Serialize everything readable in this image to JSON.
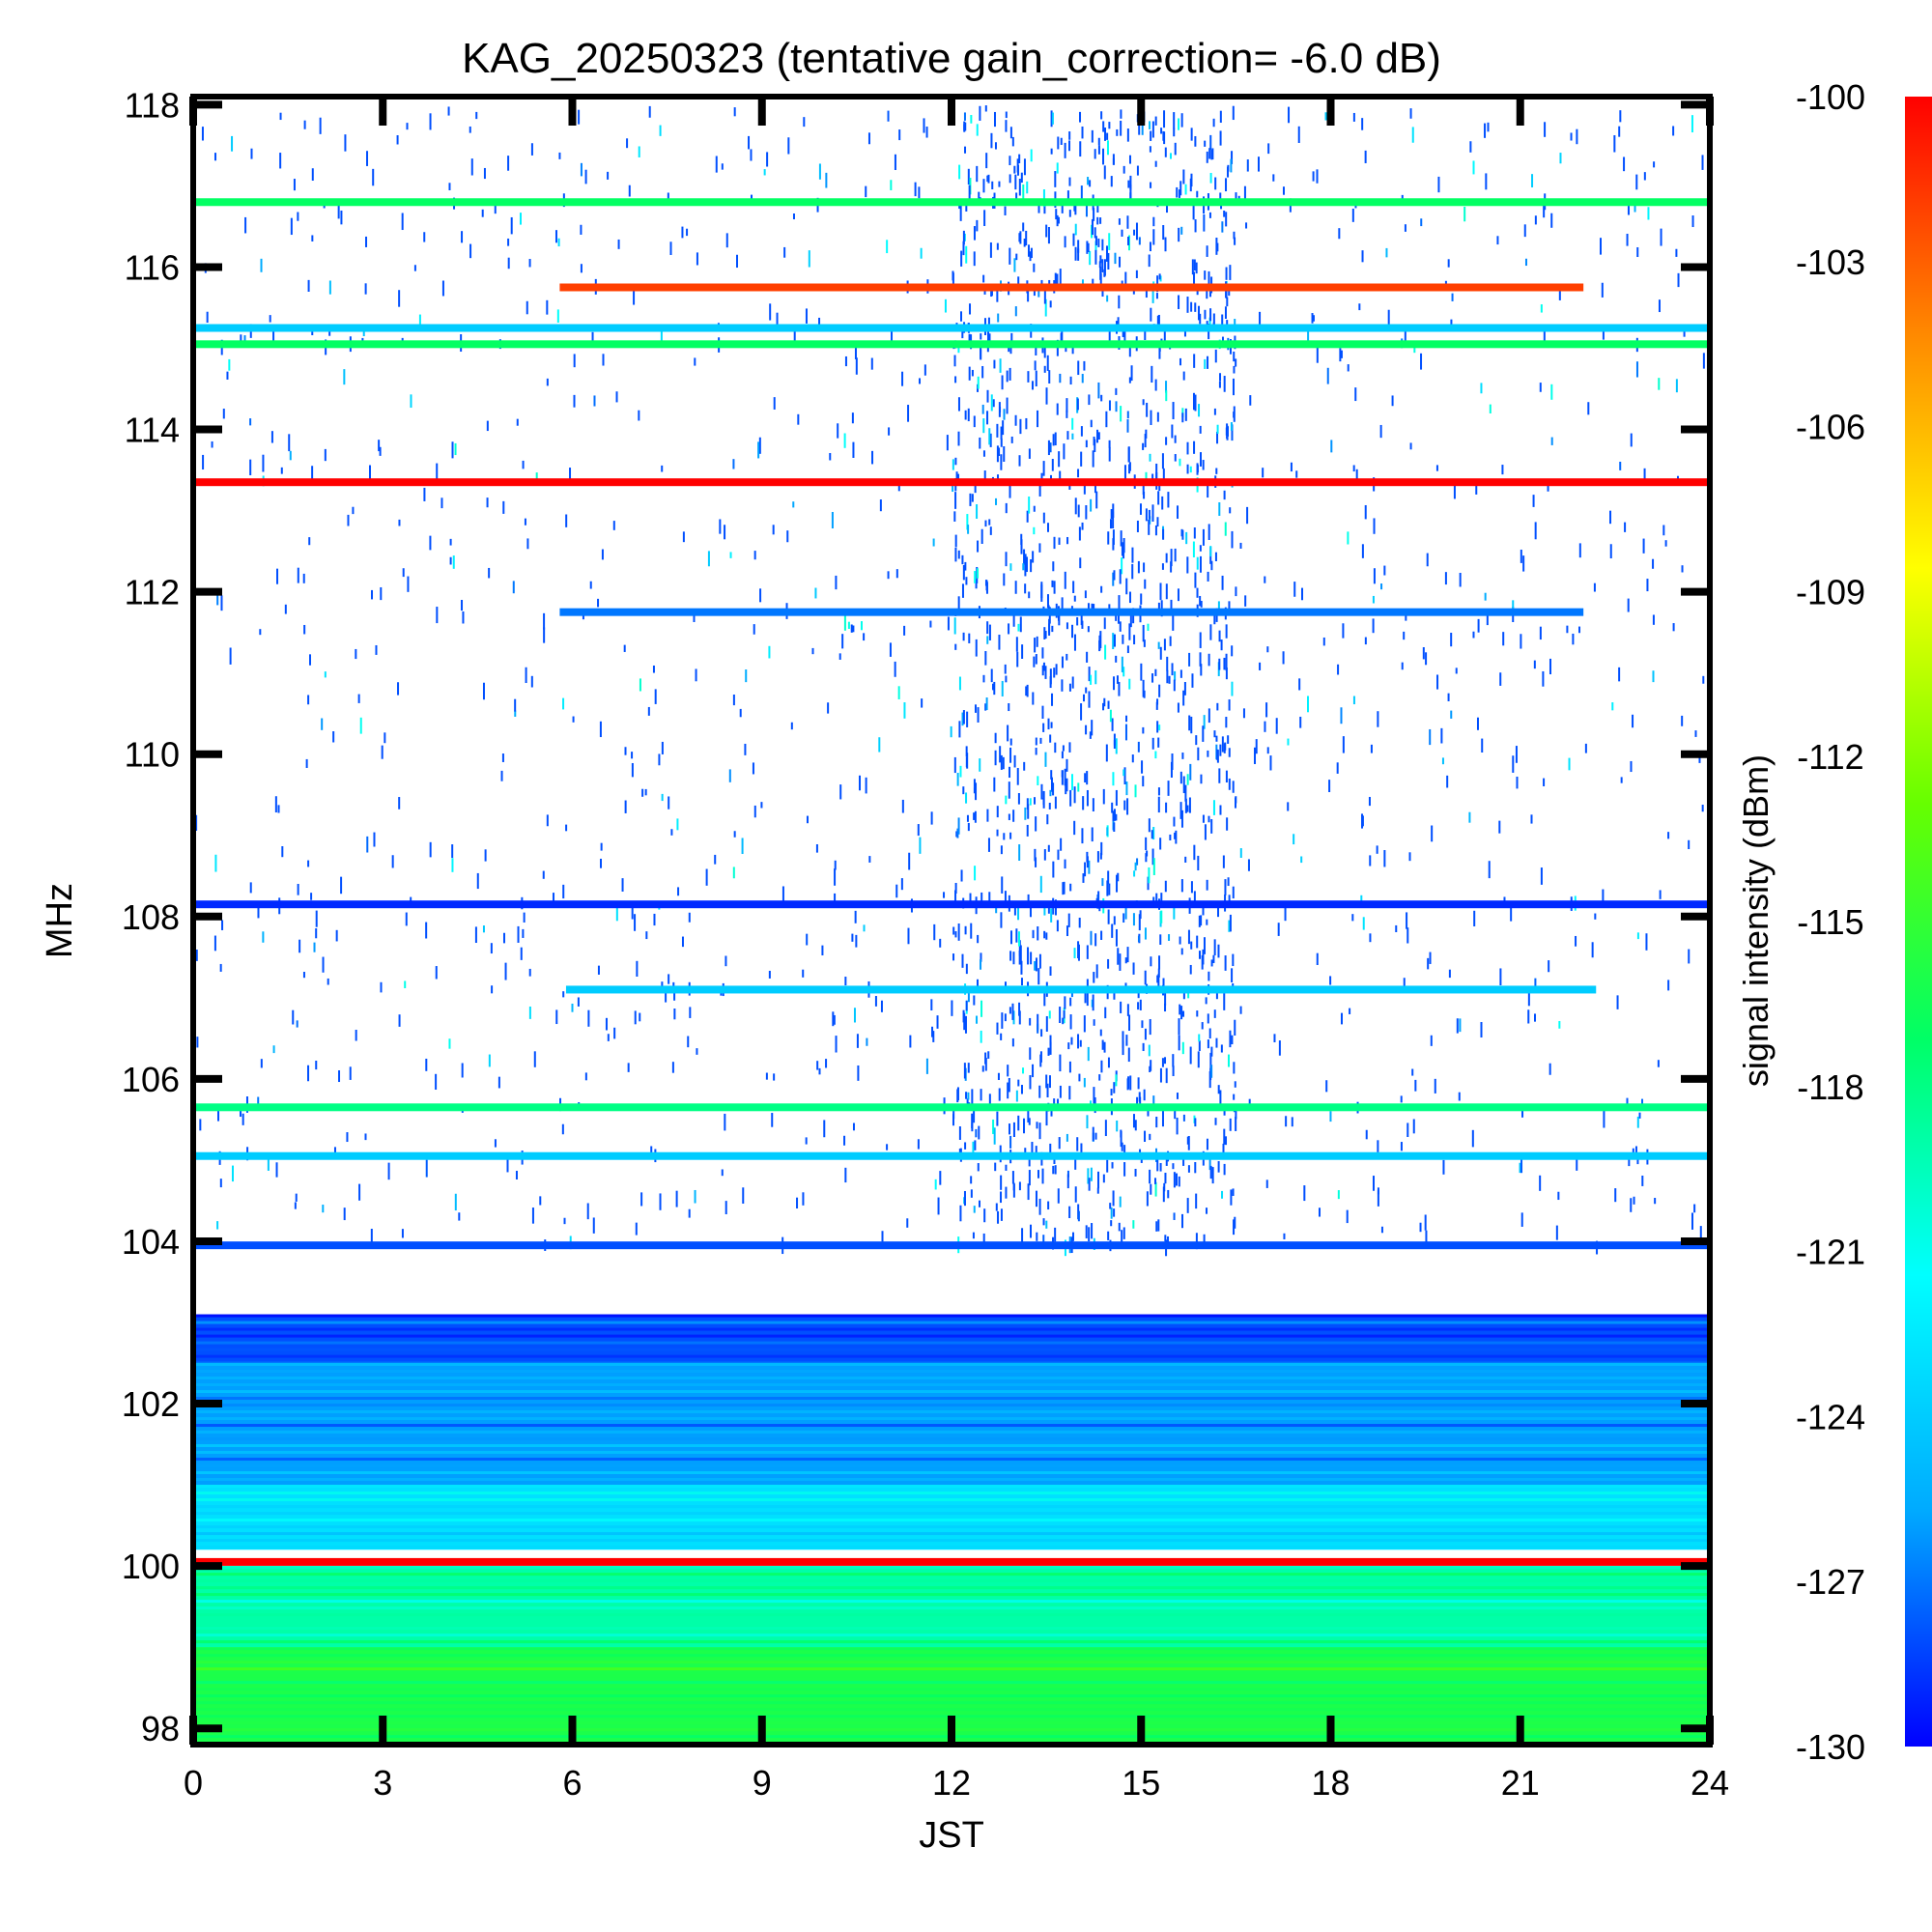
{
  "chart_data": {
    "type": "heatmap",
    "title": "KAG_20250323 (tentative gain_correction= -6.0 dB)",
    "xlabel": "JST",
    "ylabel": "MHz",
    "xlim": [
      0,
      24
    ],
    "ylim": [
      97.8,
      118.1
    ],
    "xticks": [
      "0",
      "3",
      "6",
      "9",
      "12",
      "15",
      "18",
      "21",
      "24"
    ],
    "yticks": [
      "98",
      "100",
      "102",
      "104",
      "106",
      "108",
      "110",
      "112",
      "114",
      "116",
      "118"
    ],
    "colorbar": {
      "label": "signal intensity (dBm)",
      "range": [
        -130,
        -100
      ],
      "ticks": [
        "-100",
        "-103",
        "-106",
        "-109",
        "-112",
        "-115",
        "-118",
        "-121",
        "-124",
        "-127",
        "-130"
      ],
      "colors": [
        "#0000ff",
        "#00aaff",
        "#00ffff",
        "#00ff66",
        "#66ff00",
        "#ffff00",
        "#ff8800",
        "#ff0000"
      ]
    },
    "continuous_bands": [
      {
        "freq_mhz": 116.8,
        "x_start": 0,
        "x_end": 24,
        "dbm": -117
      },
      {
        "freq_mhz": 115.75,
        "x_start": 5.8,
        "x_end": 22.0,
        "dbm": -102
      },
      {
        "freq_mhz": 115.25,
        "x_start": 0,
        "x_end": 24,
        "dbm": -124
      },
      {
        "freq_mhz": 115.05,
        "x_start": 0,
        "x_end": 24,
        "dbm": -117
      },
      {
        "freq_mhz": 113.35,
        "x_start": 0,
        "x_end": 24,
        "dbm": -100
      },
      {
        "freq_mhz": 111.75,
        "x_start": 5.8,
        "x_end": 22.0,
        "dbm": -127
      },
      {
        "freq_mhz": 108.15,
        "x_start": 0,
        "x_end": 24,
        "dbm": -129
      },
      {
        "freq_mhz": 107.1,
        "x_start": 5.9,
        "x_end": 22.2,
        "dbm": -124
      },
      {
        "freq_mhz": 105.65,
        "x_start": 0,
        "x_end": 24,
        "dbm": -118
      },
      {
        "freq_mhz": 105.05,
        "x_start": 0,
        "x_end": 24,
        "dbm": -124
      },
      {
        "freq_mhz": 103.95,
        "x_start": 0,
        "x_end": 24,
        "dbm": -128
      },
      {
        "freq_mhz": 100.05,
        "x_start": 0,
        "x_end": 24,
        "dbm": -100
      }
    ],
    "background_regions": [
      {
        "freq_from": 102.5,
        "freq_to": 103.1,
        "dbm": -128
      },
      {
        "freq_from": 101.0,
        "freq_to": 102.5,
        "dbm": -126
      },
      {
        "freq_from": 100.2,
        "freq_to": 101.0,
        "dbm": -123
      },
      {
        "freq_from": 99.0,
        "freq_to": 100.0,
        "dbm": -119
      },
      {
        "freq_from": 97.8,
        "freq_to": 99.0,
        "dbm": -116
      }
    ],
    "sparse_activity": {
      "freq_from": 104.0,
      "freq_to": 118.0,
      "peak_time_from": 12.0,
      "peak_time_to": 16.5,
      "typical_dbm": -128
    }
  }
}
